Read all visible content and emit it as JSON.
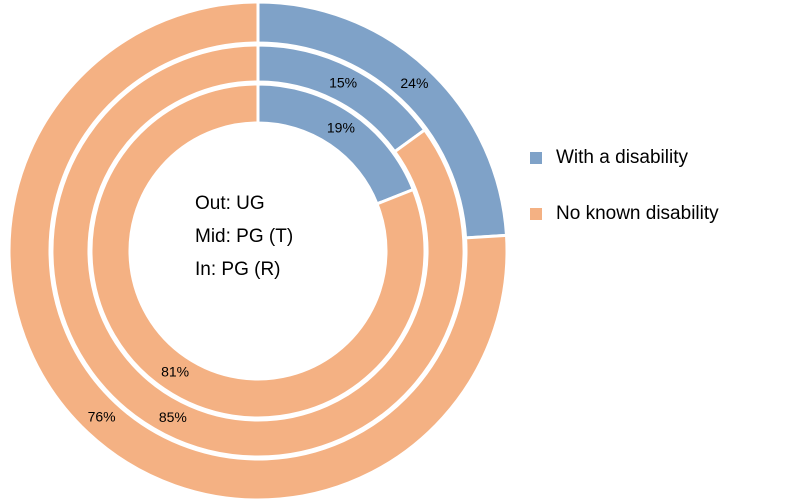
{
  "chart_data": {
    "type": "donut",
    "categories": [
      "With a disability",
      "No known disability"
    ],
    "colors": [
      "#7fa2c8",
      "#f4b183"
    ],
    "rings": [
      {
        "values": [
          24,
          76
        ],
        "value_labels": [
          "24%",
          "76%"
        ]
      },
      {
        "values": [
          15,
          85
        ],
        "value_labels": [
          "15%",
          "85%"
        ]
      },
      {
        "values": [
          19,
          81
        ],
        "value_labels": [
          "19%",
          "81%"
        ]
      }
    ],
    "annotations": [
      "Out: UG",
      "Mid: PG (T)",
      "In: PG (R)"
    ],
    "legend": "right"
  }
}
